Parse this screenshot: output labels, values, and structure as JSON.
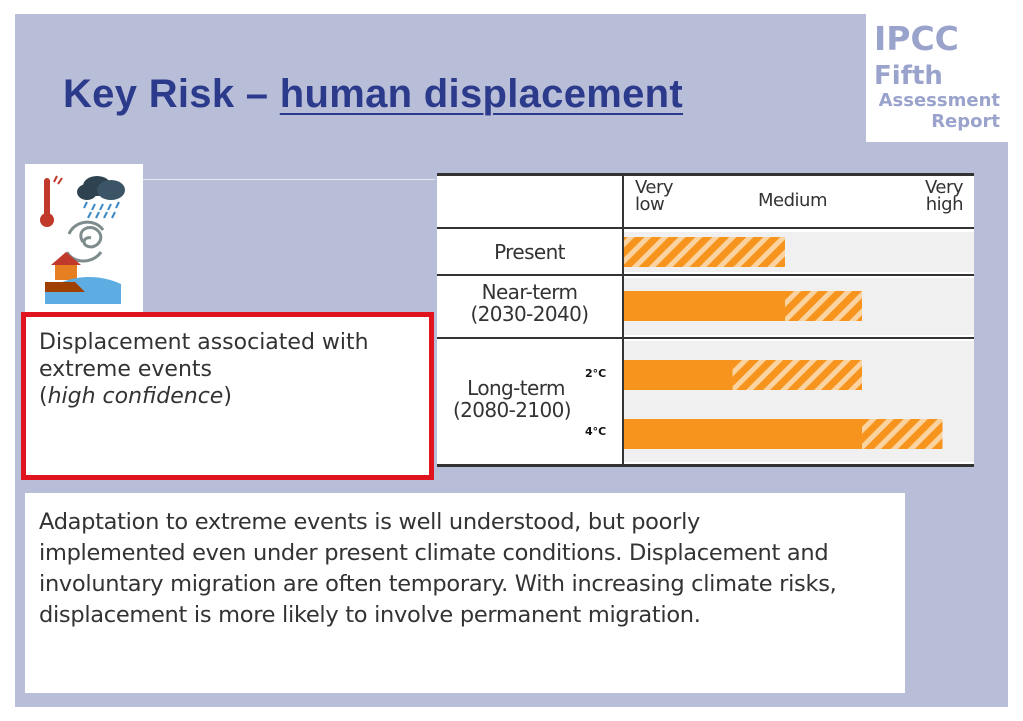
{
  "slide": {
    "title_prefix": "Key Risk – ",
    "title_underlined": "human displacement",
    "logo": {
      "line1": "IPCC",
      "line2": "Fifth",
      "line3": "Assessment",
      "line4": "Report"
    },
    "icons": [
      "thermometer-icon",
      "rain-cloud-icon",
      "cyclone-icon",
      "flood-house-icon"
    ],
    "risk_box": {
      "line1": "Displacement associated with",
      "line2": "extreme events",
      "paren_open": "(",
      "confidence": "high confidence",
      "paren_close": ")"
    },
    "risk_table": {
      "header_very_low": "Very low",
      "header_medium": "Medium",
      "header_very_high": "Very high",
      "rows": [
        {
          "label": "Present",
          "period": "",
          "level_solid": 0.0,
          "level_hatch_end": 0.46
        },
        {
          "label": "Near-term",
          "period": "(2030-2040)",
          "level_solid": 0.46,
          "level_hatch_end": 0.68
        },
        {
          "label": "Long-term",
          "period": "(2080-2100)",
          "scenario": "2°C",
          "level_solid": 0.31,
          "level_hatch_end": 0.68
        },
        {
          "scenario": "4°C",
          "level_solid": 0.68,
          "level_hatch_end": 0.91
        }
      ],
      "colors": {
        "bar": "#f7941d",
        "hatch": "#fbd3a0"
      }
    },
    "paragraph": {
      "line1": "Adaptation to extreme events is well understood, but poorly",
      "line2": "implemented even under present climate conditions. Displacement and",
      "line3": "involuntary migration are often temporary. With increasing climate risks,",
      "line4": "displacement is more likely to involve permanent migration."
    },
    "colors": {
      "background": "#b8bed8",
      "title": "#2c3a8c",
      "logo": "#9aa3cc",
      "highlight_border": "#e0141e"
    }
  }
}
